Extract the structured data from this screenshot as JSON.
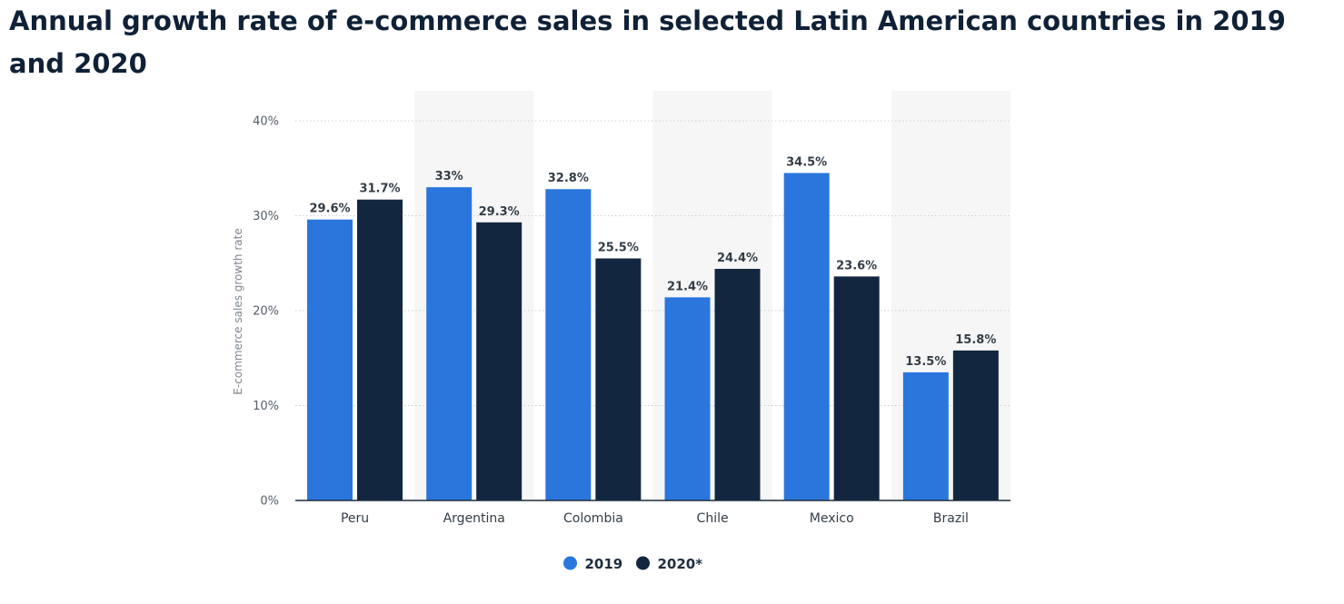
{
  "page": {
    "title": "Annual growth rate of e-commerce sales in selected Latin American countries in 2019 and 2020"
  },
  "chart_data": {
    "type": "bar",
    "title": "Annual growth rate of e-commerce sales in selected Latin American countries in 2019 and 2020",
    "xlabel": "",
    "ylabel": "E-commerce sales growth rate",
    "categories": [
      "Peru",
      "Argentina",
      "Colombia",
      "Chile",
      "Mexico",
      "Brazil"
    ],
    "series": [
      {
        "name": "2019",
        "color": "#2a76dd",
        "values": [
          29.6,
          33,
          32.8,
          21.4,
          34.5,
          13.5
        ],
        "labels": [
          "29.6%",
          "33%",
          "32.8%",
          "21.4%",
          "34.5%",
          "13.5%"
        ]
      },
      {
        "name": "2020*",
        "color": "#12263f",
        "values": [
          31.7,
          29.3,
          25.5,
          24.4,
          23.6,
          15.8
        ],
        "labels": [
          "31.7%",
          "29.3%",
          "25.5%",
          "24.4%",
          "23.6%",
          "15.8%"
        ]
      }
    ],
    "ylim": [
      0,
      40
    ],
    "yticks": [
      0,
      10,
      20,
      30,
      40
    ],
    "ytick_labels": [
      "0%",
      "10%",
      "20%",
      "30%",
      "40%"
    ],
    "grid": true,
    "legend_position": "bottom-center"
  }
}
